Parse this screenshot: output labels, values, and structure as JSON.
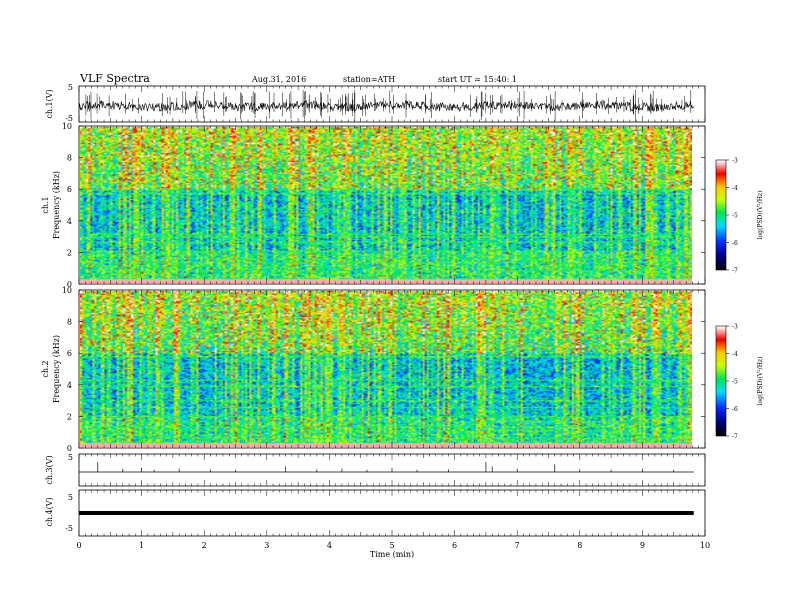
{
  "header": {
    "title": "VLF  Spectra",
    "date": "Aug.31, 2016",
    "station": "station=ATH",
    "start": "start  UT =   15:40: 1"
  },
  "colorbar_label": "log(PSD)(V²/Hz)",
  "chart_data": [
    {
      "type": "line",
      "panel": "ch1-waveform",
      "ylabel": "ch.1(V)",
      "ylim": [
        -5,
        5
      ],
      "yticks": [
        5,
        -5
      ],
      "xlim": [
        0,
        10
      ],
      "noise_amplitude": 1.2,
      "spike_count": 120
    },
    {
      "type": "heatmap",
      "panel": "ch1-spectrogram",
      "ylabel": "ch.1",
      "ylabel2": "Frequency  (kHz)",
      "ylim": [
        0,
        10
      ],
      "yticks": [
        0,
        2,
        4,
        6,
        8,
        10
      ],
      "xlim": [
        0,
        10
      ],
      "colorbar": {
        "ticks": [
          -3,
          -4,
          -5,
          -6,
          -7
        ],
        "range": [
          -7,
          -3
        ]
      },
      "hum_lines_khz": [
        0.25,
        0.5,
        0.75,
        1.0,
        1.25,
        1.5,
        1.75,
        2.0,
        2.6,
        2.9,
        3.1,
        5.7,
        6.0
      ]
    },
    {
      "type": "heatmap",
      "panel": "ch2-spectrogram",
      "ylabel": "ch.2",
      "ylabel2": "Frequency  (kHz)",
      "ylim": [
        0,
        10
      ],
      "yticks": [
        0,
        2,
        4,
        6,
        8,
        10
      ],
      "xlim": [
        0,
        10
      ],
      "colorbar": {
        "ticks": [
          -3,
          -4,
          -5,
          -6,
          -7
        ],
        "range": [
          -7,
          -3
        ]
      },
      "hum_lines_khz": [
        0.25,
        0.5,
        0.75,
        1.0,
        1.3,
        1.6,
        1.9,
        2.5,
        2.9,
        3.9,
        4.3,
        5.8
      ]
    },
    {
      "type": "line",
      "panel": "ch3-waveform",
      "ylabel": "ch.3(V)",
      "ylim": [
        -5,
        5
      ],
      "yticks": [
        5
      ],
      "xlim": [
        0,
        10
      ],
      "spikes": [
        [
          0.3,
          4.5
        ],
        [
          0.7,
          1.5
        ],
        [
          1.0,
          2.0
        ],
        [
          1.2,
          1.0
        ],
        [
          1.6,
          1.5
        ],
        [
          2.1,
          1.2
        ],
        [
          2.5,
          1.0
        ],
        [
          3.3,
          2.5
        ],
        [
          3.8,
          1.2
        ],
        [
          4.2,
          1.5
        ],
        [
          4.6,
          1.0
        ],
        [
          5.0,
          1.8
        ],
        [
          5.4,
          1.0
        ],
        [
          5.9,
          1.2
        ],
        [
          6.5,
          4.5
        ],
        [
          6.6,
          2.5
        ],
        [
          7.0,
          1.5
        ],
        [
          7.6,
          3.5
        ],
        [
          8.0,
          1.2
        ],
        [
          8.5,
          1.0
        ],
        [
          9.0,
          1.5
        ],
        [
          9.5,
          1.0
        ]
      ]
    },
    {
      "type": "line",
      "panel": "ch4-waveform",
      "ylabel": "ch.4(V)",
      "ylim": [
        -5,
        5
      ],
      "yticks": [
        5,
        -5
      ],
      "xlim": [
        0,
        10
      ],
      "constant_value": 0
    }
  ],
  "xaxis": {
    "label": "Time  (min)",
    "ticks": [
      "0",
      "1",
      "2",
      "3",
      "4",
      "5",
      "6",
      "7",
      "8",
      "9",
      "10"
    ],
    "data_end": 9.82
  }
}
